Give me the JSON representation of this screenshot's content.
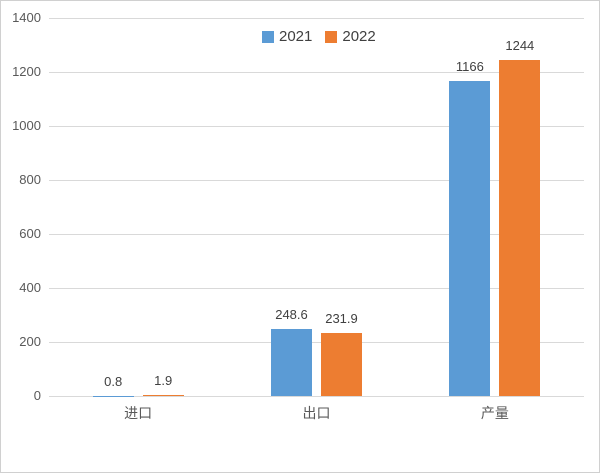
{
  "chart": {
    "background": "#ffffff",
    "border_color": "#d0d0d0",
    "grid_color": "#d9d9d9",
    "axis_text_color": "#595959",
    "value_label_color": "#404040",
    "legend_text_color": "#404040"
  },
  "chart_data": {
    "type": "bar",
    "title": "",
    "xlabel": "",
    "ylabel": "",
    "categories": [
      "进口",
      "出口",
      "产量"
    ],
    "series": [
      {
        "name": "2021",
        "color": "#5b9bd5",
        "values": [
          0.8,
          248.6,
          1166
        ]
      },
      {
        "name": "2022",
        "color": "#ed7d31",
        "values": [
          1.9,
          231.9,
          1244
        ]
      }
    ],
    "data_labels": [
      [
        "0.8",
        "248.6",
        "1166"
      ],
      [
        "1.9",
        "231.9",
        "1244"
      ]
    ],
    "ylim": [
      0,
      1400
    ],
    "yticks": [
      0,
      200,
      400,
      600,
      800,
      1000,
      1200,
      1400
    ],
    "grid": true,
    "legend_position": "top-center"
  }
}
